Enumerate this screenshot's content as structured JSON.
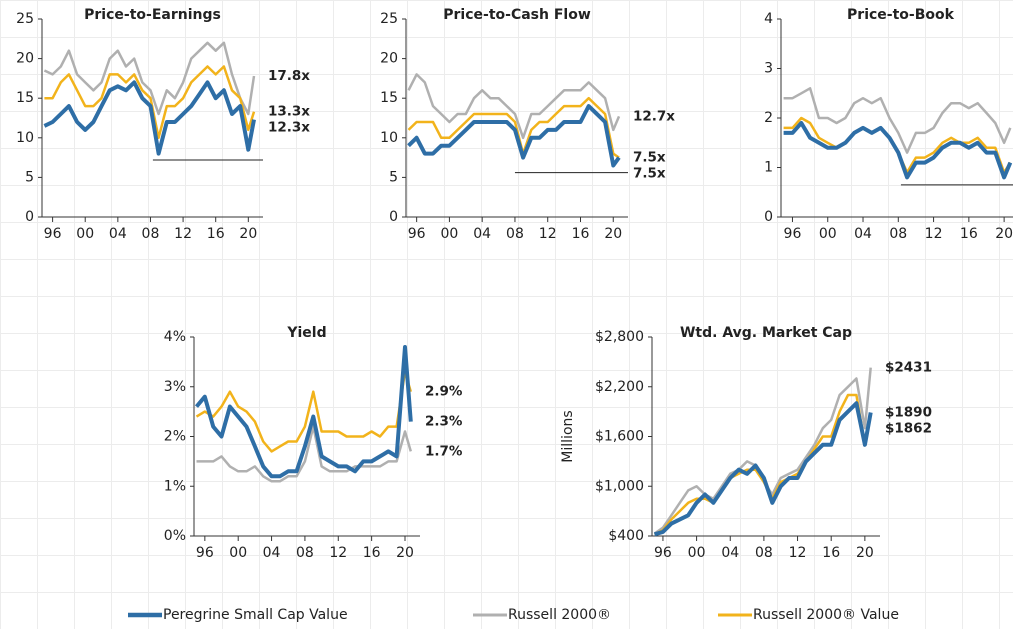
{
  "legend": [
    {
      "name": "Peregrine Small Cap Value",
      "color": "#2e6ea6"
    },
    {
      "name": "Russell 2000®",
      "color": "#b0b0b0"
    },
    {
      "name": "Russell 2000® Value",
      "color": "#f2b31b"
    }
  ],
  "chart_data": [
    {
      "type": "line",
      "title": "Price-to-Earnings",
      "x": [
        1995,
        1996,
        1997,
        1998,
        1999,
        2000,
        2001,
        2002,
        2003,
        2004,
        2005,
        2006,
        2007,
        2008,
        2009,
        2010,
        2011,
        2012,
        2013,
        2014,
        2015,
        2016,
        2017,
        2018,
        2019,
        2020,
        2020.7
      ],
      "xlim": [
        1994.7,
        2021.8
      ],
      "xticks": [
        {
          "value": 1996,
          "label": "96"
        },
        {
          "value": 2000,
          "label": "00"
        },
        {
          "value": 2004,
          "label": "04"
        },
        {
          "value": 2008,
          "label": "08"
        },
        {
          "value": 2012,
          "label": "12"
        },
        {
          "value": 2016,
          "label": "16"
        },
        {
          "value": 2020,
          "label": "20"
        }
      ],
      "ylim": [
        0,
        25
      ],
      "yticks": [
        0,
        5,
        10,
        15,
        20,
        25
      ],
      "hline": {
        "y": 7.2,
        "x": [
          2008.3,
          2021.8
        ]
      },
      "series": [
        {
          "values": [
            11.5,
            12,
            13,
            14,
            12,
            11,
            12,
            14,
            16,
            16.5,
            16,
            17,
            15,
            14,
            8,
            12,
            12,
            13,
            14,
            15.5,
            17,
            15,
            16,
            13,
            14,
            8.5,
            12.3
          ],
          "end_label": "12.3x"
        },
        {
          "values": [
            18.5,
            18,
            19,
            21,
            18,
            17,
            16,
            17,
            20,
            21,
            19,
            20,
            17,
            16,
            13,
            16,
            15,
            17,
            20,
            21,
            22,
            21,
            22,
            18,
            15,
            13,
            17.8
          ],
          "end_label": "17.8x"
        },
        {
          "values": [
            15,
            15,
            17,
            18,
            16,
            14,
            14,
            15,
            18,
            18,
            17,
            18,
            16,
            15,
            10,
            14,
            14,
            15,
            17,
            18,
            19,
            18,
            19,
            16,
            15,
            11,
            13.3
          ],
          "end_label": "13.3x"
        }
      ]
    },
    {
      "type": "line",
      "title": "Price-to-Cash Flow",
      "x": [
        1995,
        1996,
        1997,
        1998,
        1999,
        2000,
        2001,
        2002,
        2003,
        2004,
        2005,
        2006,
        2007,
        2008,
        2009,
        2010,
        2011,
        2012,
        2013,
        2014,
        2015,
        2016,
        2017,
        2018,
        2019,
        2020,
        2020.7
      ],
      "xlim": [
        1994.7,
        2021.8
      ],
      "xticks": [
        {
          "value": 1996,
          "label": "96"
        },
        {
          "value": 2000,
          "label": "00"
        },
        {
          "value": 2004,
          "label": "04"
        },
        {
          "value": 2008,
          "label": "08"
        },
        {
          "value": 2012,
          "label": "12"
        },
        {
          "value": 2016,
          "label": "16"
        },
        {
          "value": 2020,
          "label": "20"
        }
      ],
      "ylim": [
        0,
        25
      ],
      "yticks": [
        0,
        5,
        10,
        15,
        20,
        25
      ],
      "hline": {
        "y": 5.6,
        "x": [
          2008,
          2021.8
        ]
      },
      "series": [
        {
          "values": [
            9,
            10,
            8,
            8,
            9,
            9,
            10,
            11,
            12,
            12,
            12,
            12,
            12,
            11,
            7.5,
            10,
            10,
            11,
            11,
            12,
            12,
            12,
            14,
            13,
            12,
            6.5,
            7.5
          ],
          "end_label": "7.5x"
        },
        {
          "values": [
            16,
            18,
            17,
            14,
            13,
            12,
            13,
            13,
            15,
            16,
            15,
            15,
            14,
            13,
            10,
            13,
            13,
            14,
            15,
            16,
            16,
            16,
            17,
            16,
            15,
            11,
            12.7
          ],
          "end_label": "12.7x"
        },
        {
          "values": [
            11,
            12,
            12,
            12,
            10,
            10,
            11,
            12,
            13,
            13,
            13,
            13,
            13,
            12,
            8,
            11,
            12,
            12,
            13,
            14,
            14,
            14,
            15,
            14,
            13,
            8,
            7.5
          ],
          "end_label": "7.5x"
        }
      ]
    },
    {
      "type": "line",
      "title": "Price-to-Book",
      "x": [
        1995,
        1996,
        1997,
        1998,
        1999,
        2000,
        2001,
        2002,
        2003,
        2004,
        2005,
        2006,
        2007,
        2008,
        2009,
        2010,
        2011,
        2012,
        2013,
        2014,
        2015,
        2016,
        2017,
        2018,
        2019,
        2020,
        2020.7
      ],
      "xlim": [
        1994.7,
        2021.8
      ],
      "xticks": [
        {
          "value": 1996,
          "label": "96"
        },
        {
          "value": 2000,
          "label": "00"
        },
        {
          "value": 2004,
          "label": "04"
        },
        {
          "value": 2008,
          "label": "08"
        },
        {
          "value": 2012,
          "label": "12"
        },
        {
          "value": 2016,
          "label": "16"
        },
        {
          "value": 2020,
          "label": "20"
        }
      ],
      "ylim": [
        0,
        4
      ],
      "yticks": [
        0,
        1,
        2,
        3,
        4
      ],
      "hline": {
        "y": 0.65,
        "x": [
          2008.3,
          2021.8
        ]
      },
      "series": [
        {
          "values": [
            1.7,
            1.7,
            1.9,
            1.6,
            1.5,
            1.4,
            1.4,
            1.5,
            1.7,
            1.8,
            1.7,
            1.8,
            1.6,
            1.3,
            0.8,
            1.1,
            1.1,
            1.2,
            1.4,
            1.5,
            1.5,
            1.4,
            1.5,
            1.3,
            1.3,
            0.8,
            1.1
          ]
        },
        {
          "values": [
            2.4,
            2.4,
            2.5,
            2.6,
            2.0,
            2.0,
            1.9,
            2.0,
            2.3,
            2.4,
            2.3,
            2.4,
            2.0,
            1.7,
            1.3,
            1.7,
            1.7,
            1.8,
            2.1,
            2.3,
            2.3,
            2.2,
            2.3,
            2.1,
            1.9,
            1.5,
            1.8
          ]
        },
        {
          "values": [
            1.8,
            1.8,
            2.0,
            1.9,
            1.6,
            1.5,
            1.4,
            1.5,
            1.7,
            1.8,
            1.7,
            1.8,
            1.6,
            1.3,
            0.9,
            1.2,
            1.2,
            1.3,
            1.5,
            1.6,
            1.5,
            1.5,
            1.6,
            1.4,
            1.4,
            0.9,
            1.1
          ]
        }
      ]
    },
    {
      "type": "line",
      "title": "Yield",
      "x": [
        1995,
        1996,
        1997,
        1998,
        1999,
        2000,
        2001,
        2002,
        2003,
        2004,
        2005,
        2006,
        2007,
        2008,
        2009,
        2010,
        2011,
        2012,
        2013,
        2014,
        2015,
        2016,
        2017,
        2018,
        2019,
        2020,
        2020.7
      ],
      "xlim": [
        1994.7,
        2021.8
      ],
      "xticks": [
        {
          "value": 1996,
          "label": "96"
        },
        {
          "value": 2000,
          "label": "00"
        },
        {
          "value": 2004,
          "label": "04"
        },
        {
          "value": 2008,
          "label": "08"
        },
        {
          "value": 2012,
          "label": "12"
        },
        {
          "value": 2016,
          "label": "16"
        },
        {
          "value": 2020,
          "label": "20"
        }
      ],
      "ylim": [
        0,
        4
      ],
      "yticks": [
        {
          "value": 0,
          "label": "0%"
        },
        {
          "value": 1,
          "label": "1%"
        },
        {
          "value": 2,
          "label": "2%"
        },
        {
          "value": 3,
          "label": "3%"
        },
        {
          "value": 4,
          "label": "4%"
        }
      ],
      "series": [
        {
          "values": [
            2.6,
            2.8,
            2.2,
            2.0,
            2.6,
            2.4,
            2.2,
            1.8,
            1.4,
            1.2,
            1.2,
            1.3,
            1.3,
            1.8,
            2.4,
            1.6,
            1.5,
            1.4,
            1.4,
            1.3,
            1.5,
            1.5,
            1.6,
            1.7,
            1.6,
            3.8,
            2.3
          ],
          "end_label": "2.3%"
        },
        {
          "values": [
            1.5,
            1.5,
            1.5,
            1.6,
            1.4,
            1.3,
            1.3,
            1.4,
            1.2,
            1.1,
            1.1,
            1.2,
            1.2,
            1.5,
            2.2,
            1.4,
            1.3,
            1.3,
            1.3,
            1.4,
            1.4,
            1.4,
            1.4,
            1.5,
            1.5,
            2.1,
            1.7
          ],
          "end_label": "1.7%"
        },
        {
          "values": [
            2.4,
            2.5,
            2.4,
            2.6,
            2.9,
            2.6,
            2.5,
            2.3,
            1.9,
            1.7,
            1.8,
            1.9,
            1.9,
            2.2,
            2.9,
            2.1,
            2.1,
            2.1,
            2.0,
            2.0,
            2.0,
            2.1,
            2.0,
            2.2,
            2.2,
            3.3,
            2.9
          ],
          "end_label": "2.9%"
        }
      ]
    },
    {
      "type": "line",
      "title": "Wtd. Avg. Market Cap",
      "ylabel": "Millions",
      "x": [
        1995,
        1996,
        1997,
        1998,
        1999,
        2000,
        2001,
        2002,
        2003,
        2004,
        2005,
        2006,
        2007,
        2008,
        2009,
        2010,
        2011,
        2012,
        2013,
        2014,
        2015,
        2016,
        2017,
        2018,
        2019,
        2020,
        2020.7
      ],
      "xlim": [
        1994.7,
        2021.8
      ],
      "xticks": [
        {
          "value": 1996,
          "label": "96"
        },
        {
          "value": 2000,
          "label": "00"
        },
        {
          "value": 2004,
          "label": "04"
        },
        {
          "value": 2008,
          "label": "08"
        },
        {
          "value": 2012,
          "label": "12"
        },
        {
          "value": 2016,
          "label": "16"
        },
        {
          "value": 2020,
          "label": "20"
        }
      ],
      "ylim": [
        400,
        2800
      ],
      "yticks": [
        {
          "value": 400,
          "label": "$400"
        },
        {
          "value": 1000,
          "label": "$1,000"
        },
        {
          "value": 1600,
          "label": "$1,600"
        },
        {
          "value": 2200,
          "label": "$2,200"
        },
        {
          "value": 2800,
          "label": "$2,800"
        }
      ],
      "series": [
        {
          "values": [
            420,
            450,
            550,
            600,
            650,
            800,
            900,
            800,
            950,
            1100,
            1200,
            1150,
            1250,
            1100,
            800,
            1000,
            1100,
            1100,
            1300,
            1400,
            1500,
            1500,
            1800,
            1900,
            2000,
            1500,
            1890
          ],
          "end_label": "$1890"
        },
        {
          "values": [
            430,
            500,
            650,
            800,
            950,
            1000,
            900,
            850,
            1000,
            1150,
            1200,
            1300,
            1250,
            1050,
            900,
            1100,
            1150,
            1200,
            1350,
            1500,
            1700,
            1800,
            2100,
            2200,
            2300,
            1700,
            2431
          ],
          "end_label": "$2431"
        },
        {
          "values": [
            420,
            470,
            600,
            700,
            800,
            850,
            850,
            800,
            950,
            1100,
            1150,
            1200,
            1200,
            1050,
            850,
            1050,
            1100,
            1150,
            1300,
            1450,
            1600,
            1600,
            1900,
            2100,
            2100,
            1500,
            1862
          ],
          "end_label": "$1862"
        }
      ]
    }
  ]
}
